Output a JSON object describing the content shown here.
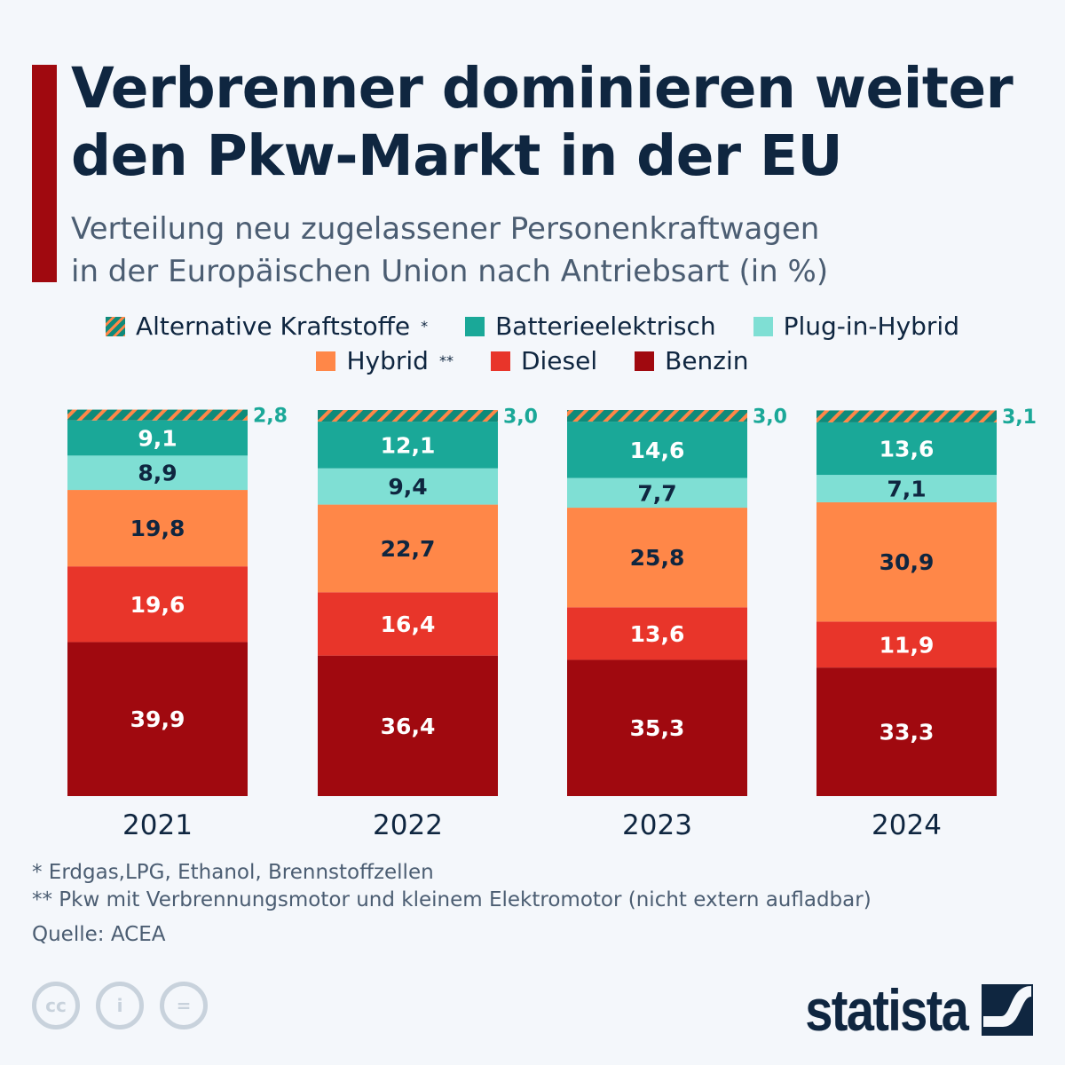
{
  "title": "Verbrenner dominieren weiter den Pkw-Markt in der EU",
  "subtitle_line1": "Verteilung neu zugelassener Personenkraftwagen",
  "subtitle_line2": "in der Europäischen Union nach Antriebsart (in %)",
  "colors": {
    "Benzin": "#a0090f",
    "Diesel": "#e8352a",
    "Hybrid": "#ff8748",
    "Plug-in-Hybrid": "#7fdfd4",
    "Batterieelektrisch": "#1aa898",
    "Alternative Kraftstoffe": "#0f8a7a",
    "hatch": "#ff8748",
    "text": "#0f2640"
  },
  "chart_data": {
    "type": "bar",
    "stacked": true,
    "categories": [
      "2021",
      "2022",
      "2023",
      "2024"
    ],
    "series": [
      {
        "name": "Benzin",
        "values": [
          39.9,
          36.4,
          35.3,
          33.3
        ],
        "labels": [
          "39,9",
          "36,4",
          "35,3",
          "33,3"
        ]
      },
      {
        "name": "Diesel",
        "values": [
          19.6,
          16.4,
          13.6,
          11.9
        ],
        "labels": [
          "19,6",
          "16,4",
          "13,6",
          "11,9"
        ]
      },
      {
        "name": "Hybrid",
        "values": [
          19.8,
          22.7,
          25.8,
          30.9
        ],
        "labels": [
          "19,8",
          "22,7",
          "25,8",
          "30,9"
        ]
      },
      {
        "name": "Plug-in-Hybrid",
        "values": [
          8.9,
          9.4,
          7.7,
          7.1
        ],
        "labels": [
          "8,9",
          "9,4",
          "7,7",
          "7,1"
        ]
      },
      {
        "name": "Batterieelektrisch",
        "values": [
          9.1,
          12.1,
          14.6,
          13.6
        ],
        "labels": [
          "9,1",
          "12,1",
          "14,6",
          "13,6"
        ]
      },
      {
        "name": "Alternative Kraftstoffe",
        "values": [
          2.8,
          3.0,
          3.0,
          3.1
        ],
        "labels": [
          "2,8",
          "3,0",
          "3,0",
          "3,1"
        ]
      }
    ],
    "ylim": [
      0,
      100
    ],
    "grid": false,
    "legend_position": "top"
  },
  "legend": {
    "row1": [
      {
        "label": "Alternative Kraftstoffe",
        "mark": "*",
        "key": "Alternative Kraftstoffe"
      },
      {
        "label": "Batterieelektrisch",
        "mark": "",
        "key": "Batterieelektrisch"
      },
      {
        "label": "Plug-in-Hybrid",
        "mark": "",
        "key": "Plug-in-Hybrid"
      }
    ],
    "row2": [
      {
        "label": "Hybrid",
        "mark": "**",
        "key": "Hybrid"
      },
      {
        "label": "Diesel",
        "mark": "",
        "key": "Diesel"
      },
      {
        "label": "Benzin",
        "mark": "",
        "key": "Benzin"
      }
    ]
  },
  "footnotes": {
    "note1": "*   Erdgas,LPG, Ethanol, Brennstoffzellen",
    "note2": "** Pkw mit Verbrennungsmotor und kleinem Elektromotor (nicht extern aufladbar)",
    "source": "Quelle: ACEA"
  },
  "license_icons": [
    "cc-icon",
    "attribution-icon",
    "no-derivatives-icon"
  ],
  "brand": "statista"
}
